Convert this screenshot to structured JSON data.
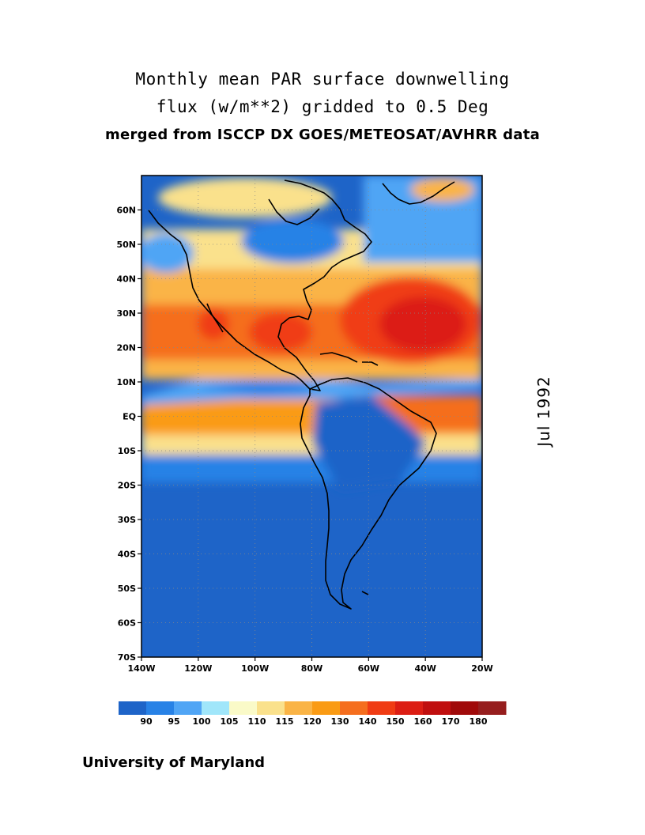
{
  "title": {
    "line1": "Monthly mean PAR surface downwelling",
    "line2": "flux (w/m**2) gridded to 0.5 Deg",
    "line3": "merged from ISCCP DX GOES/METEOSAT/AVHRR data"
  },
  "date_label": "Jul 1992",
  "footer": "University of Maryland",
  "map": {
    "lon_range": [
      -140,
      -20
    ],
    "lat_range": [
      -70,
      70
    ],
    "lat_ticks": [
      "60N",
      "50N",
      "40N",
      "30N",
      "20N",
      "10N",
      "EQ",
      "10S",
      "20S",
      "30S",
      "40S",
      "50S",
      "60S",
      "70S"
    ],
    "lon_ticks": [
      "140W",
      "120W",
      "100W",
      "80W",
      "60W",
      "40W",
      "20W"
    ],
    "gridlines": "dotted",
    "coastline_color": "#000000"
  },
  "colorbar": {
    "labels": [
      "90",
      "95",
      "100",
      "105",
      "110",
      "115",
      "120",
      "130",
      "140",
      "150",
      "160",
      "170",
      "180"
    ],
    "colors": [
      "#1e64c8",
      "#2882e6",
      "#50a5f5",
      "#a0e6fa",
      "#fafac8",
      "#fae18c",
      "#fab446",
      "#fa9b14",
      "#f56e1e",
      "#f03c14",
      "#dc1e14",
      "#c00f0f",
      "#a00a0a",
      "#961e1e"
    ]
  }
}
